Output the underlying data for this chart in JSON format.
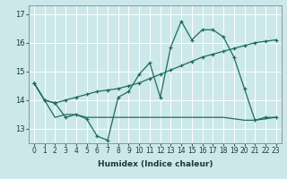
{
  "title": "",
  "xlabel": "Humidex (Indice chaleur)",
  "background_color": "#cce8ea",
  "grid_color": "#ffffff",
  "line_color": "#1e6b5e",
  "xlim": [
    -0.5,
    23.5
  ],
  "ylim": [
    12.5,
    17.3
  ],
  "xticks": [
    0,
    1,
    2,
    3,
    4,
    5,
    6,
    7,
    8,
    9,
    10,
    11,
    12,
    13,
    14,
    15,
    16,
    17,
    18,
    19,
    20,
    21,
    22,
    23
  ],
  "yticks": [
    13,
    14,
    15,
    16,
    17
  ],
  "series1": [
    14.6,
    14.0,
    13.9,
    13.4,
    13.5,
    13.35,
    12.75,
    12.6,
    14.1,
    14.3,
    14.9,
    15.3,
    14.1,
    15.85,
    16.75,
    16.1,
    16.45,
    16.45,
    16.2,
    15.5,
    14.4,
    13.3,
    13.4,
    13.4
  ],
  "series2": [
    14.6,
    14.0,
    13.9,
    14.0,
    14.1,
    14.2,
    14.3,
    14.35,
    14.4,
    14.5,
    14.6,
    14.75,
    14.9,
    15.05,
    15.2,
    15.35,
    15.5,
    15.6,
    15.7,
    15.8,
    15.9,
    16.0,
    16.05,
    16.1
  ],
  "series3": [
    14.6,
    14.0,
    13.4,
    13.5,
    13.5,
    13.4,
    13.4,
    13.4,
    13.4,
    13.4,
    13.4,
    13.4,
    13.4,
    13.4,
    13.4,
    13.4,
    13.4,
    13.4,
    13.4,
    13.35,
    13.3,
    13.3,
    13.35,
    13.4
  ],
  "tick_fontsize": 5.5,
  "xlabel_fontsize": 6.5
}
